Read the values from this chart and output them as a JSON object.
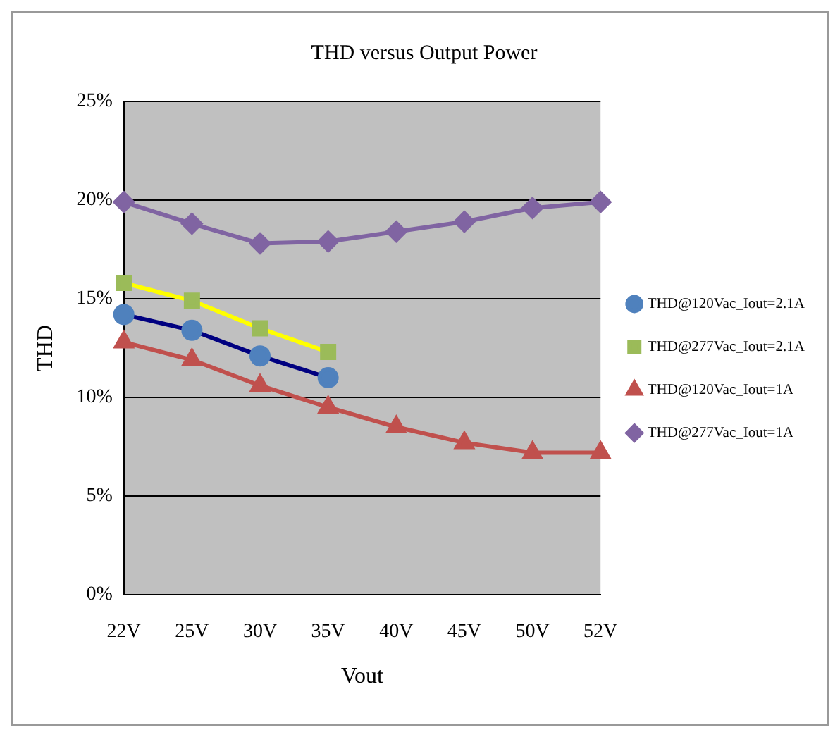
{
  "chart_data": {
    "type": "line",
    "title": "THD versus Output Power",
    "xlabel": "Vout",
    "ylabel": "THD",
    "categories": [
      "22V",
      "25V",
      "30V",
      "35V",
      "40V",
      "45V",
      "50V",
      "52V"
    ],
    "series": [
      {
        "name": "THD@120Vac_Iout=2.1A",
        "color": "#000080",
        "marker": "circle",
        "values": [
          14.2,
          13.4,
          12.1,
          11.0,
          null,
          null,
          null,
          null
        ]
      },
      {
        "name": "THD@277Vac_Iout=2.1A",
        "color": "#ffff00",
        "marker": "square",
        "values": [
          15.8,
          14.9,
          13.5,
          12.3,
          null,
          null,
          null,
          null
        ]
      },
      {
        "name": "THD@120Vac_Iout=1A",
        "color": "#c0504d",
        "marker": "triangle",
        "values": [
          12.8,
          11.9,
          10.6,
          9.5,
          8.5,
          7.7,
          7.2,
          7.2
        ]
      },
      {
        "name": "THD@277Vac_Iout=1A",
        "color": "#8064a2",
        "marker": "diamond",
        "values": [
          19.9,
          18.8,
          17.8,
          17.9,
          18.4,
          18.9,
          19.6,
          19.9
        ]
      }
    ],
    "ylim": [
      0,
      25
    ],
    "yticks": [
      {
        "value": 0,
        "label": "0%"
      },
      {
        "value": 5,
        "label": "5%"
      },
      {
        "value": 10,
        "label": "10%"
      },
      {
        "value": 15,
        "label": "15%"
      },
      {
        "value": 20,
        "label": "20%"
      },
      {
        "value": 25,
        "label": "25%"
      }
    ],
    "grid": "y",
    "legend": "right"
  }
}
